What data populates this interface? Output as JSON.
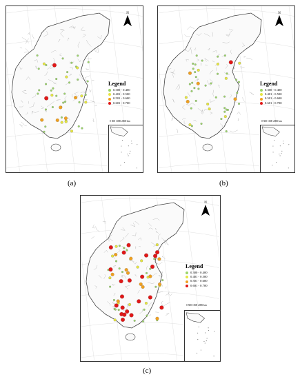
{
  "figure": {
    "captions": [
      "(a)",
      "(b)",
      "(c)"
    ],
    "north_label": "N"
  },
  "legend": {
    "title": "Legend",
    "classes": [
      {
        "range": "0.300 - 0.400",
        "color": "#9bd46a"
      },
      {
        "range": "0.401 - 0.500",
        "color": "#e6e640"
      },
      {
        "range": "0.501 - 0.600",
        "color": "#f0a020"
      },
      {
        "range": "0.601 - 0.700",
        "color": "#e01818"
      }
    ]
  },
  "scale_bar": {
    "small": "0  500 1000    2000 km",
    "large": "0  500 1000      2000 km"
  },
  "panels": [
    {
      "id": "a",
      "counts": [
        32,
        10,
        5,
        2
      ]
    },
    {
      "id": "b",
      "counts": [
        34,
        9,
        4,
        1
      ]
    },
    {
      "id": "c",
      "counts": [
        24,
        12,
        12,
        22
      ]
    }
  ]
}
